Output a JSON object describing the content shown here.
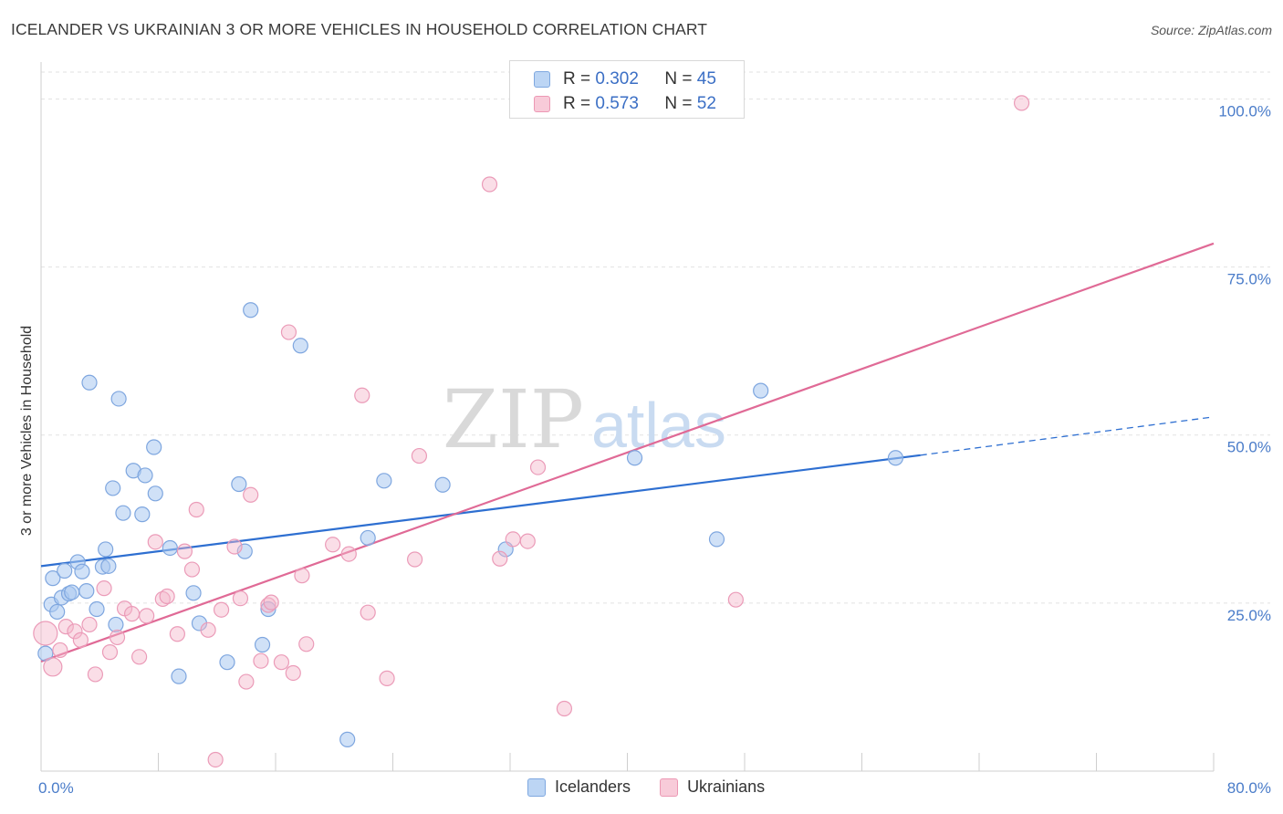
{
  "title": "ICELANDER VS UKRAINIAN 3 OR MORE VEHICLES IN HOUSEHOLD CORRELATION CHART",
  "source": "Source: ZipAtlas.com",
  "watermark": {
    "zip": "ZIP",
    "atlas": "atlas"
  },
  "legend": {
    "r_label": "R =",
    "n_label": "N =",
    "rows": [
      {
        "r": "0.302",
        "n": "45"
      },
      {
        "r": "0.573",
        "n": "52"
      }
    ]
  },
  "chart_data": {
    "type": "scatter",
    "title": "ICELANDER VS UKRAINIAN 3 OR MORE VEHICLES IN HOUSEHOLD CORRELATION CHART",
    "xlabel": "",
    "ylabel": "3 or more Vehicles in Household",
    "xlim": [
      0,
      80
    ],
    "ylim": [
      0,
      104
    ],
    "x_tick_labels": [
      "0.0%",
      "80.0%"
    ],
    "y_ticks": [
      25,
      50,
      75,
      100
    ],
    "y_tick_labels": [
      "25.0%",
      "50.0%",
      "75.0%",
      "100.0%"
    ],
    "colors": {
      "icelanders": "#a9c8f0",
      "icelanders_line": "#2e6fd1",
      "ukrainians": "#f5b6ca",
      "ukrainians_line": "#e06a96"
    },
    "series": [
      {
        "name": "Icelanders",
        "trend": {
          "x0": 0,
          "y0": 30.5,
          "x1": 60,
          "y1": 47.0,
          "dash_to_x": 80,
          "dash_to_y": 52.7
        },
        "points": [
          [
            0.3,
            17.5
          ],
          [
            0.7,
            24.8
          ],
          [
            0.8,
            28.7
          ],
          [
            1.1,
            23.7
          ],
          [
            1.4,
            25.8
          ],
          [
            1.6,
            29.8
          ],
          [
            1.9,
            26.4
          ],
          [
            2.1,
            26.6
          ],
          [
            2.5,
            31.1
          ],
          [
            2.8,
            29.7
          ],
          [
            3.1,
            26.8
          ],
          [
            3.3,
            57.8
          ],
          [
            3.8,
            24.1
          ],
          [
            4.2,
            30.4
          ],
          [
            4.4,
            33.0
          ],
          [
            4.6,
            30.5
          ],
          [
            4.9,
            42.1
          ],
          [
            5.1,
            21.8
          ],
          [
            5.3,
            55.4
          ],
          [
            5.6,
            38.4
          ],
          [
            6.3,
            44.7
          ],
          [
            6.9,
            38.2
          ],
          [
            7.1,
            44.0
          ],
          [
            7.7,
            48.2
          ],
          [
            7.8,
            41.3
          ],
          [
            8.8,
            33.2
          ],
          [
            9.4,
            14.1
          ],
          [
            10.4,
            26.5
          ],
          [
            10.8,
            22.0
          ],
          [
            12.7,
            16.2
          ],
          [
            13.5,
            42.7
          ],
          [
            13.9,
            32.7
          ],
          [
            14.3,
            68.6
          ],
          [
            15.1,
            18.8
          ],
          [
            15.5,
            24.1
          ],
          [
            17.7,
            63.3
          ],
          [
            20.9,
            4.7
          ],
          [
            22.3,
            34.7
          ],
          [
            23.4,
            43.2
          ],
          [
            27.4,
            42.6
          ],
          [
            31.7,
            33.0
          ],
          [
            40.5,
            46.6
          ],
          [
            46.1,
            34.5
          ],
          [
            49.1,
            56.6
          ],
          [
            58.3,
            46.6
          ]
        ]
      },
      {
        "name": "Ukrainians",
        "trend": {
          "x0": 0,
          "y0": 16.3,
          "x1": 80,
          "y1": 78.5
        },
        "points": [
          [
            0.3,
            20.5
          ],
          [
            0.8,
            15.5
          ],
          [
            1.3,
            18.0
          ],
          [
            1.7,
            21.5
          ],
          [
            2.3,
            20.8
          ],
          [
            2.7,
            19.5
          ],
          [
            3.3,
            21.8
          ],
          [
            3.7,
            14.4
          ],
          [
            4.3,
            27.2
          ],
          [
            4.7,
            17.7
          ],
          [
            5.2,
            19.9
          ],
          [
            5.7,
            24.2
          ],
          [
            6.2,
            23.4
          ],
          [
            6.7,
            17.0
          ],
          [
            7.2,
            23.1
          ],
          [
            7.8,
            34.1
          ],
          [
            8.3,
            25.6
          ],
          [
            8.6,
            26.0
          ],
          [
            9.3,
            20.4
          ],
          [
            9.8,
            32.7
          ],
          [
            10.3,
            30.0
          ],
          [
            10.6,
            38.9
          ],
          [
            11.4,
            21.0
          ],
          [
            11.9,
            1.7
          ],
          [
            12.3,
            24.0
          ],
          [
            13.2,
            33.4
          ],
          [
            13.6,
            25.7
          ],
          [
            14.0,
            13.3
          ],
          [
            14.3,
            41.1
          ],
          [
            15.0,
            16.4
          ],
          [
            15.5,
            24.7
          ],
          [
            15.7,
            25.1
          ],
          [
            16.4,
            16.2
          ],
          [
            16.9,
            65.3
          ],
          [
            17.2,
            14.6
          ],
          [
            17.8,
            29.1
          ],
          [
            18.1,
            18.9
          ],
          [
            19.9,
            33.7
          ],
          [
            21.0,
            32.3
          ],
          [
            21.9,
            55.9
          ],
          [
            22.3,
            23.6
          ],
          [
            23.6,
            13.8
          ],
          [
            25.5,
            31.5
          ],
          [
            25.8,
            46.9
          ],
          [
            30.6,
            87.3
          ],
          [
            31.3,
            31.6
          ],
          [
            32.2,
            34.5
          ],
          [
            33.2,
            34.2
          ],
          [
            33.9,
            45.2
          ],
          [
            35.7,
            9.3
          ],
          [
            47.4,
            25.5
          ],
          [
            66.9,
            99.4
          ]
        ]
      }
    ]
  }
}
